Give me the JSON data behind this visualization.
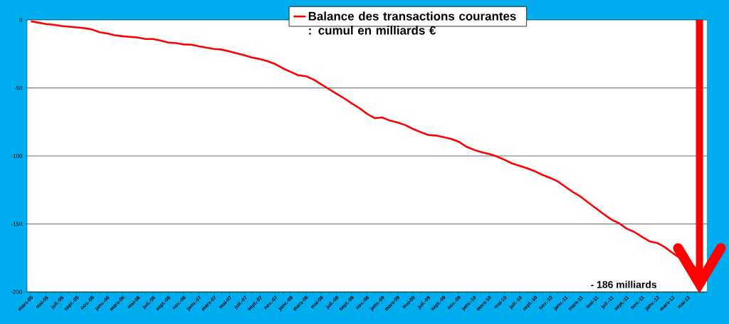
{
  "chart_data": {
    "type": "line",
    "categories": [
      "mars-05",
      null,
      "mai-05",
      null,
      "juil.-05",
      null,
      "sept.-05",
      null,
      "nov.-05",
      null,
      "janv.-06",
      null,
      "mars-06",
      null,
      "mai-06",
      null,
      "juil.-06",
      null,
      "sept.-06",
      null,
      "nov.-06",
      null,
      "janv.-07",
      null,
      "mars-07",
      null,
      "mai-07",
      null,
      "juil.-07",
      null,
      "sept.-07",
      null,
      "nov.-07",
      null,
      "janv.-08",
      null,
      "mars-08",
      null,
      "mai-08",
      null,
      "juil.-08",
      null,
      "sept.-08",
      null,
      "nov.-08",
      null,
      "janv.-09",
      null,
      "mars-09",
      null,
      "mai-09",
      null,
      "juil.-09",
      null,
      "sept.-09",
      null,
      "nov.-09",
      null,
      "janv.-10",
      null,
      "mars-10",
      null,
      "mai-10",
      null,
      "juil.-10",
      null,
      "sept.-10",
      null,
      "nov.-10",
      null,
      "janv.-11",
      null,
      "mars-11",
      null,
      "mai-11",
      null,
      "juil.-11",
      null,
      "sept.-11",
      null,
      "nov.-11",
      null,
      "janv.-12",
      null,
      "mars-12",
      null,
      "mai-12",
      null,
      null
    ],
    "series": [
      {
        "name": "Balance des transactions courantes : cumul en milliards €",
        "color": "#ff0000",
        "values": [
          -1,
          -2,
          -3,
          -3.5,
          -4.5,
          -5,
          -5.5,
          -6,
          -7,
          -9,
          -10,
          -11.3,
          -12,
          -12.4,
          -13,
          -14,
          -14,
          -15.2,
          -16.6,
          -17,
          -18,
          -18.2,
          -19.4,
          -20.4,
          -21.3,
          -21.8,
          -23.2,
          -24.6,
          -26,
          -27.7,
          -28.8,
          -30.4,
          -32.5,
          -35.6,
          -38.2,
          -40.7,
          -41.4,
          -43.8,
          -47.3,
          -50.8,
          -54.3,
          -57.6,
          -61.3,
          -64.8,
          -69,
          -72.2,
          -71.7,
          -74,
          -75.4,
          -77.3,
          -80.1,
          -82.4,
          -84.6,
          -85,
          -86.1,
          -87.4,
          -89.5,
          -93.2,
          -95.5,
          -97.3,
          -98.6,
          -100.4,
          -102.8,
          -105.5,
          -107.3,
          -109.2,
          -111.3,
          -114,
          -116.2,
          -118.8,
          -122.8,
          -126.7,
          -130.1,
          -134.4,
          -138.6,
          -142.8,
          -146.8,
          -149.5,
          -153.5,
          -155.9,
          -159.5,
          -162.8,
          -164,
          -167.1,
          -171.3,
          -175.3,
          -177.7,
          -182.2,
          -186
        ]
      }
    ],
    "ylim": [
      -200,
      0
    ],
    "yticks": [
      -200,
      -150,
      -100,
      -50,
      0
    ],
    "grid": "y",
    "legend": "top",
    "marker": "none",
    "line_style": "solid",
    "annotations": [
      "- 186 milliards"
    ]
  }
}
